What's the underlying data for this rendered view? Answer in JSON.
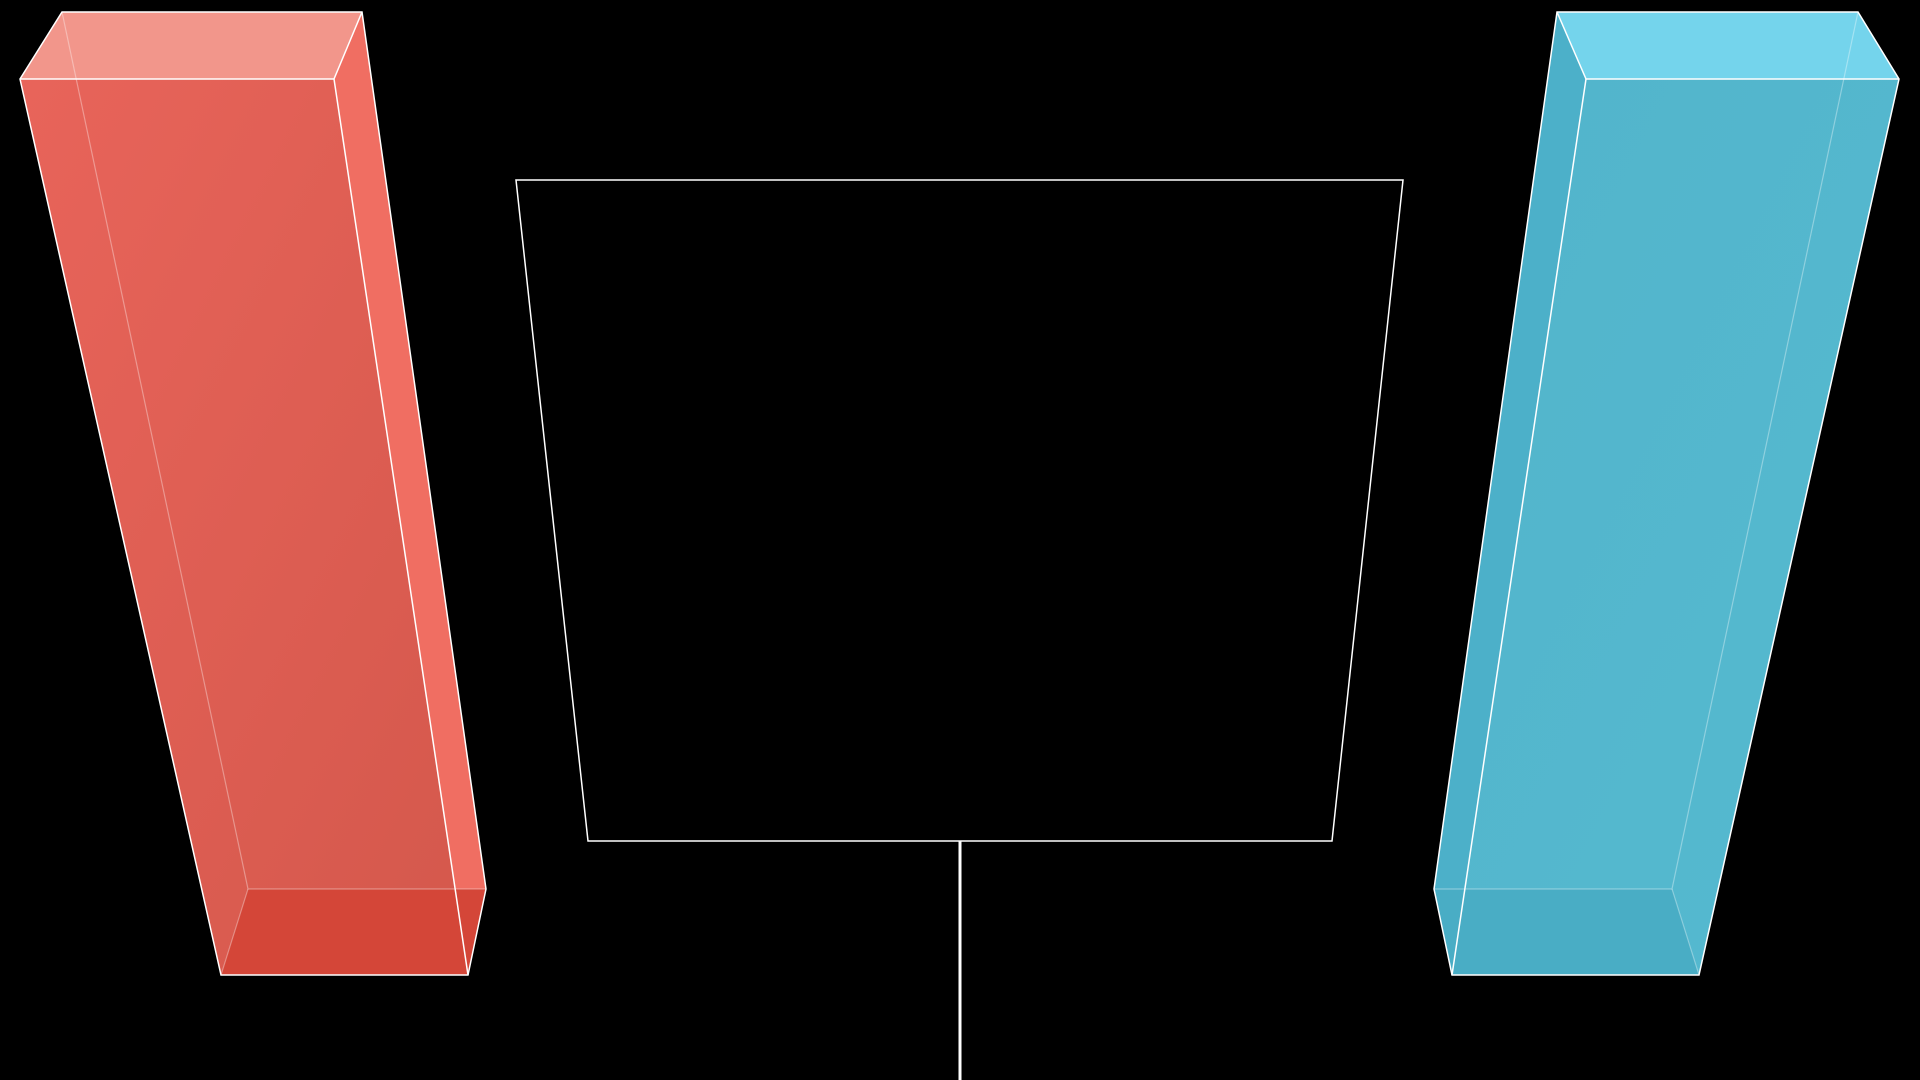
{
  "scene": {
    "background_color": "#000000",
    "edge_color": "#ffffff",
    "left_slab": {
      "front_color": "#dd5a4d",
      "side_color": "#f06e62",
      "top_color": "#f2968b",
      "bottom_color": "#d44638",
      "left_face_color": "#e0503f"
    },
    "right_slab": {
      "front_color": "#52b6cc",
      "side_color": "#4fb0c8",
      "top_color": "#74d4ec",
      "bottom_color": "#49adc5",
      "left_face_color": "#4cb0c9"
    }
  }
}
